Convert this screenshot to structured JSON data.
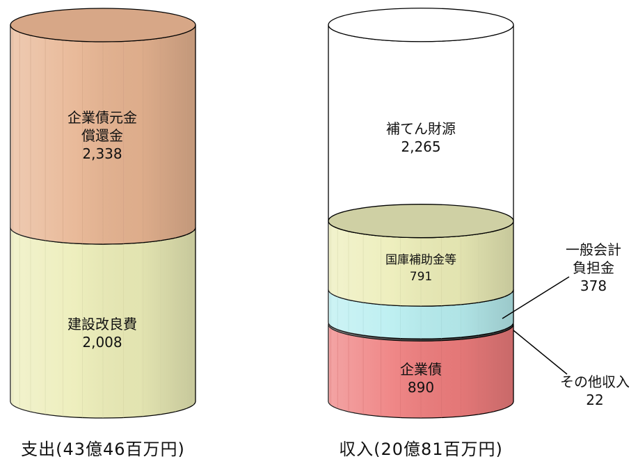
{
  "chart_data": [
    {
      "type": "bar",
      "caption": "支出(43億46百万円)",
      "unit": "百万円",
      "segments": [
        {
          "label": "建設改良費",
          "value": 2008,
          "value_text": "2,008",
          "color": "#ecedb8"
        },
        {
          "label_lines": [
            "企業債元金",
            "償還金"
          ],
          "label": "企業債元金償還金",
          "value": 2338,
          "value_text": "2,338",
          "color": "#e7b491"
        }
      ]
    },
    {
      "type": "bar",
      "caption": "収入(20億81百万円)",
      "unit": "百万円",
      "segments": [
        {
          "label": "企業債",
          "value": 890,
          "value_text": "890",
          "color": "#ee7d7d"
        },
        {
          "label": "その他収入",
          "value": 22,
          "value_text": "22",
          "color": "#404040"
        },
        {
          "label_lines": [
            "一般会計",
            "負担金"
          ],
          "label": "一般会計負担金",
          "value": 378,
          "value_text": "378",
          "color": "#b8eef0"
        },
        {
          "label": "国庫補助金等",
          "value": 791,
          "value_text": "791",
          "color": "#ecedb8"
        },
        {
          "label": "補てん財源",
          "value": 2265,
          "value_text": "2,265",
          "color": "#ffffff"
        }
      ]
    }
  ]
}
